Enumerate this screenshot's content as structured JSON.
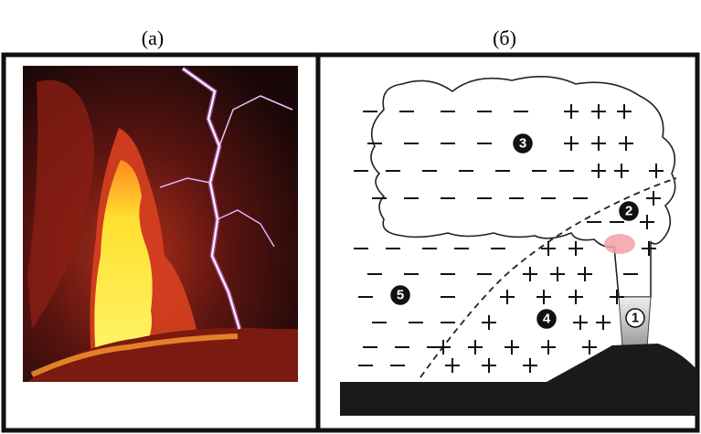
{
  "labels": {
    "a": "(а)",
    "b": "(б)"
  },
  "markers": [
    {
      "label": "1"
    },
    {
      "label": "2"
    },
    {
      "label": "3"
    },
    {
      "label": "4"
    },
    {
      "label": "5"
    }
  ]
}
